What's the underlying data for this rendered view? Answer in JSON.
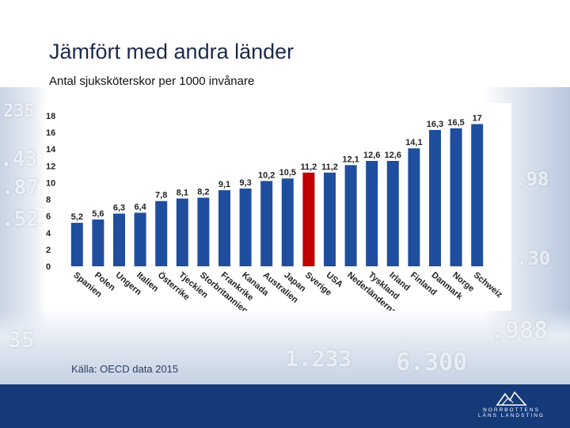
{
  "header": {
    "title": "Jämfört med andra länder",
    "subtitle": "Antal sjuksköterskor per 1000 invånare"
  },
  "source": "Källa: OECD data 2015",
  "logo": {
    "line1": "NORRBOTTENS",
    "line2": "LÄNS LANDSTING"
  },
  "colors": {
    "bar": "#1f4e9e",
    "highlight": "#c00000",
    "footer": "#143a7a",
    "title": "#1b2a4a"
  },
  "chart_data": {
    "type": "bar",
    "title": "",
    "xlabel": "",
    "ylabel": "",
    "ylim": [
      0,
      18
    ],
    "yticks": [
      0,
      2,
      4,
      6,
      8,
      10,
      12,
      14,
      16,
      18
    ],
    "categories": [
      "Spanien",
      "Polen",
      "Ungern",
      "Italien",
      "Österrike",
      "Tjeckien",
      "Storbritannien",
      "Frankrike",
      "Kanada",
      "Australien",
      "Japan",
      "Sverige",
      "USA",
      "Nederländerna",
      "Tyskland",
      "Irland",
      "Finland",
      "Danmark",
      "Norge",
      "Schweiz"
    ],
    "values": [
      5.2,
      5.6,
      6.3,
      6.4,
      7.8,
      8.1,
      8.2,
      9.1,
      9.3,
      10.2,
      10.5,
      11.2,
      11.2,
      12.1,
      12.6,
      12.6,
      14.1,
      16.3,
      16.5,
      17
    ],
    "labels": [
      "5,2",
      "5,6",
      "6,3",
      "6,4",
      "7,8",
      "8,1",
      "8,2",
      "9,1",
      "9,3",
      "10,2",
      "10,5",
      "11,2",
      "11,2",
      "12,1",
      "12,6",
      "12,6",
      "14,1",
      "16,3",
      "16,5",
      "17"
    ],
    "highlight": "Sverige"
  }
}
